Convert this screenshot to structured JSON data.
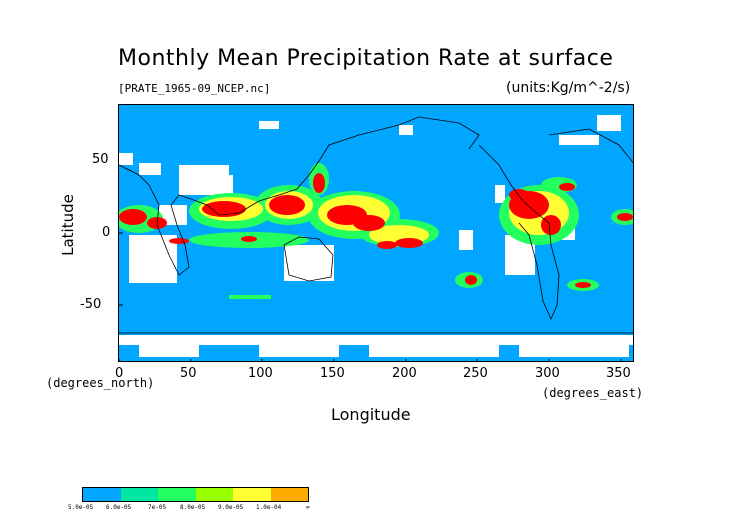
{
  "title": "Monthly Mean Precipitation Rate at surface",
  "file_label": "[PRATE_1965-09_NCEP.nc]",
  "units_label": "(units:Kg/m^-2/s)",
  "y_axis_label": "Latitude",
  "x_axis_label": "Longitude",
  "y_axis_unit": "(degrees_north)",
  "x_axis_unit": "(degrees_east)",
  "x_ticks": [
    "0",
    "50",
    "100",
    "150",
    "200",
    "250",
    "300",
    "350"
  ],
  "y_ticks": [
    "50",
    "0",
    "-50"
  ],
  "legend": {
    "labels": [
      "5.0e-05",
      "6.0e-05",
      "7e-05",
      "8.0e-05",
      "9.0e-05",
      "1.0e-04",
      "∞"
    ],
    "colors": [
      "#00a6ff",
      "#00e5a0",
      "#22ff5e",
      "#98ff00",
      "#ffff33",
      "#ffaa00",
      "#ff0000"
    ]
  },
  "colors": {
    "background": "#00a6ff",
    "land_low": "#ffffff",
    "coast": "#000000"
  }
}
